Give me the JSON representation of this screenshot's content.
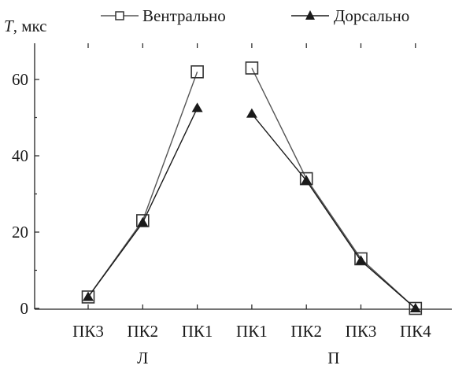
{
  "chart_data": {
    "type": "line",
    "title": "",
    "ylabel_italic": "T",
    "ylabel_rest": ", мкс",
    "xlabel": "",
    "ylim": [
      0,
      68
    ],
    "yticks": [
      0,
      20,
      40,
      60
    ],
    "grid": false,
    "legend_position": "top",
    "categories": [
      "ПК3",
      "ПК2",
      "ПК1",
      "ПК1",
      "ПК2",
      "ПК3",
      "ПК4"
    ],
    "groups": [
      {
        "label": "Л",
        "categories": [
          "ПК3",
          "ПК2",
          "ПК1"
        ]
      },
      {
        "label": "П",
        "categories": [
          "ПК1",
          "ПК2",
          "ПК3",
          "ПК4"
        ]
      }
    ],
    "series": [
      {
        "name": "Вентрально",
        "marker": "open-square",
        "color": "#555555",
        "segments": [
          [
            0,
            1,
            2
          ],
          [
            3,
            4,
            5,
            6
          ]
        ],
        "values": [
          3,
          23,
          62,
          63,
          34,
          13,
          0
        ]
      },
      {
        "name": "Дорсально",
        "marker": "filled-triangle",
        "color": "#1a1a1a",
        "segments": [
          [
            0,
            1,
            2
          ],
          [
            3,
            4,
            5,
            6
          ]
        ],
        "values": [
          3,
          22.5,
          52.5,
          51,
          33.5,
          12.5,
          0
        ]
      }
    ]
  }
}
